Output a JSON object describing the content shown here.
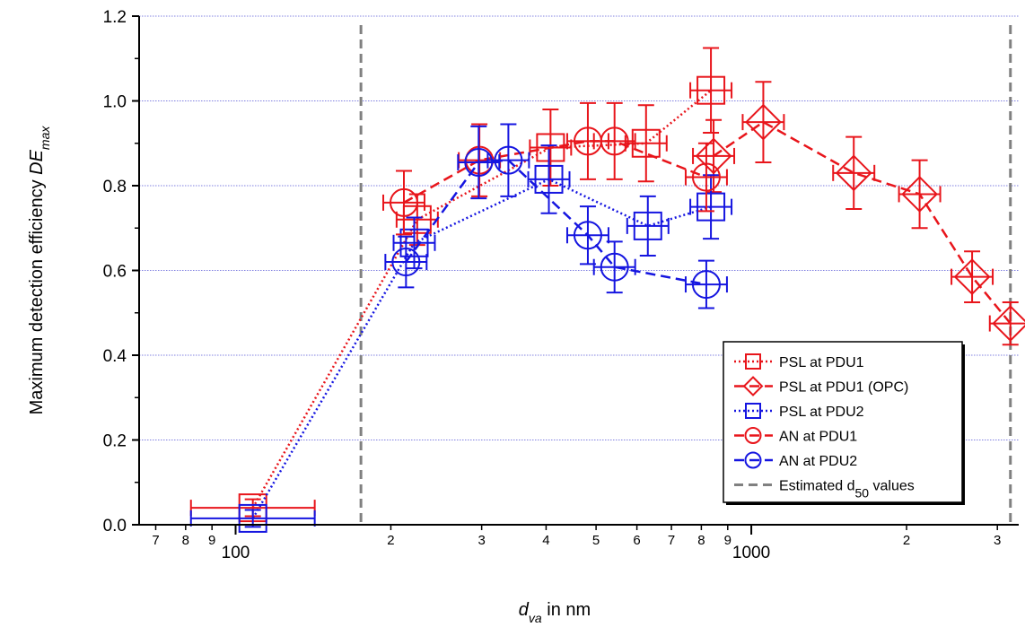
{
  "chart_data": {
    "type": "scatter",
    "xscale": "log",
    "xlim": [
      65,
      3300
    ],
    "ylim": [
      0,
      1.2
    ],
    "xlabel": {
      "var": "d",
      "sub": "va",
      "rest": " in nm"
    },
    "ylabel": {
      "text": "Maximum detection efficiency ",
      "var": "DE",
      "sub": "max"
    },
    "x_major_ticks": [
      {
        "value": 100,
        "label": "100"
      },
      {
        "value": 1000,
        "label": "1000"
      }
    ],
    "x_minor_ticks": [
      {
        "value": 70,
        "label": "7"
      },
      {
        "value": 80,
        "label": "8"
      },
      {
        "value": 90,
        "label": "9"
      },
      {
        "value": 200,
        "label": "2"
      },
      {
        "value": 300,
        "label": "3"
      },
      {
        "value": 400,
        "label": "4"
      },
      {
        "value": 500,
        "label": "5"
      },
      {
        "value": 600,
        "label": "6"
      },
      {
        "value": 700,
        "label": "7"
      },
      {
        "value": 800,
        "label": "8"
      },
      {
        "value": 900,
        "label": "9"
      },
      {
        "value": 2000,
        "label": "2"
      },
      {
        "value": 3000,
        "label": "3"
      }
    ],
    "y_ticks": [
      {
        "value": 0.0,
        "label": "0.0"
      },
      {
        "value": 0.2,
        "label": "0.2"
      },
      {
        "value": 0.4,
        "label": "0.4"
      },
      {
        "value": 0.6,
        "label": "0.6"
      },
      {
        "value": 0.8,
        "label": "0.8"
      },
      {
        "value": 1.0,
        "label": "1.0"
      },
      {
        "value": 1.2,
        "label": "1.2"
      }
    ],
    "grid": {
      "horizontal": true,
      "color": "#8080e0"
    },
    "legend_position": "bottom-right",
    "series": [
      {
        "name": "PSL at PDU1",
        "color": "#e8151b",
        "marker": "square",
        "line": "dotted",
        "points": [
          {
            "x": 108,
            "y": 0.04,
            "yerr": 0.02,
            "xerr": 0.12
          },
          {
            "x": 225,
            "y": 0.72,
            "yerr": 0.06,
            "xerr": 0.04
          },
          {
            "x": 408,
            "y": 0.89,
            "yerr": 0.09,
            "xerr": 0.04
          },
          {
            "x": 625,
            "y": 0.9,
            "yerr": 0.09,
            "xerr": 0.04
          },
          {
            "x": 835,
            "y": 1.025,
            "yerr": 0.1,
            "xerr": 0.04
          }
        ]
      },
      {
        "name": "PSL at PDU1 (OPC)",
        "color": "#e8151b",
        "marker": "diamond",
        "line": "dashed",
        "points": [
          {
            "x": 845,
            "y": 0.87,
            "yerr": 0.085,
            "xerr": 0.04
          },
          {
            "x": 1055,
            "y": 0.95,
            "yerr": 0.095,
            "xerr": 0.04
          },
          {
            "x": 1580,
            "y": 0.83,
            "yerr": 0.085,
            "xerr": 0.04
          },
          {
            "x": 2120,
            "y": 0.78,
            "yerr": 0.08,
            "xerr": 0.04
          },
          {
            "x": 2680,
            "y": 0.585,
            "yerr": 0.06,
            "xerr": 0.04
          },
          {
            "x": 3180,
            "y": 0.475,
            "yerr": 0.05,
            "xerr": 0.04
          }
        ]
      },
      {
        "name": "PSL at PDU2",
        "color": "#1515e0",
        "marker": "square",
        "line": "dotted",
        "points": [
          {
            "x": 108,
            "y": 0.015,
            "yerr": 0.02,
            "xerr": 0.12
          },
          {
            "x": 222,
            "y": 0.665,
            "yerr": 0.06,
            "xerr": 0.04
          },
          {
            "x": 405,
            "y": 0.815,
            "yerr": 0.08,
            "xerr": 0.04
          },
          {
            "x": 630,
            "y": 0.705,
            "yerr": 0.07,
            "xerr": 0.04
          },
          {
            "x": 835,
            "y": 0.75,
            "yerr": 0.075,
            "xerr": 0.04
          }
        ]
      },
      {
        "name": "AN at PDU1",
        "color": "#e8151b",
        "marker": "circle",
        "line": "dashed",
        "points": [
          {
            "x": 212,
            "y": 0.76,
            "yerr": 0.075,
            "xerr": 0.04
          },
          {
            "x": 297,
            "y": 0.86,
            "yerr": 0.085,
            "xerr": 0.04
          },
          {
            "x": 482,
            "y": 0.905,
            "yerr": 0.09,
            "xerr": 0.04
          },
          {
            "x": 543,
            "y": 0.905,
            "yerr": 0.09,
            "xerr": 0.04
          },
          {
            "x": 818,
            "y": 0.82,
            "yerr": 0.08,
            "xerr": 0.04
          }
        ]
      },
      {
        "name": "AN at PDU2",
        "color": "#1515e0",
        "marker": "circle",
        "line": "dashed",
        "points": [
          {
            "x": 214,
            "y": 0.62,
            "yerr": 0.06,
            "xerr": 0.04
          },
          {
            "x": 296,
            "y": 0.855,
            "yerr": 0.085,
            "xerr": 0.04
          },
          {
            "x": 338,
            "y": 0.86,
            "yerr": 0.085,
            "xerr": 0.04
          },
          {
            "x": 482,
            "y": 0.683,
            "yerr": 0.068,
            "xerr": 0.04
          },
          {
            "x": 543,
            "y": 0.608,
            "yerr": 0.06,
            "xerr": 0.04
          },
          {
            "x": 818,
            "y": 0.567,
            "yerr": 0.056,
            "xerr": 0.04
          }
        ]
      }
    ],
    "d50": {
      "name": "Estimated d",
      "sub": "50",
      "suffix": " values",
      "color": "#808080",
      "values": [
        175,
        3180
      ]
    }
  }
}
